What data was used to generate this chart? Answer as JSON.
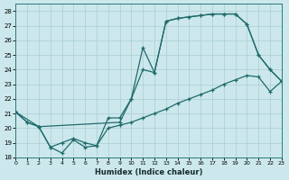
{
  "xlabel": "Humidex (Indice chaleur)",
  "bg_color": "#cce8ec",
  "line_color": "#1f6b6b",
  "grid_color": "#aacdd2",
  "xlim": [
    0,
    23
  ],
  "ylim": [
    18,
    28.5
  ],
  "xtick_vals": [
    0,
    1,
    2,
    3,
    4,
    5,
    6,
    7,
    8,
    9,
    10,
    11,
    12,
    13,
    14,
    15,
    16,
    17,
    18,
    19,
    20,
    21,
    22,
    23
  ],
  "ytick_vals": [
    18,
    19,
    20,
    21,
    22,
    23,
    24,
    25,
    26,
    27,
    28
  ],
  "line1_x": [
    0,
    1,
    2,
    3,
    4,
    5,
    6,
    7,
    8,
    9,
    10,
    11,
    12,
    13,
    14,
    15,
    16,
    17,
    18,
    19,
    20,
    21,
    22,
    23
  ],
  "line1_y": [
    21.1,
    20.4,
    20.1,
    18.7,
    18.3,
    19.2,
    18.7,
    18.8,
    20.7,
    20.7,
    22.0,
    25.5,
    23.8,
    27.3,
    27.5,
    27.6,
    27.7,
    27.8,
    27.8,
    27.8,
    27.1,
    25.0,
    24.0,
    23.2
  ],
  "line2_x": [
    0,
    2,
    9,
    10,
    11,
    12,
    13,
    14,
    15,
    16,
    17,
    18,
    19,
    20,
    21,
    22,
    23
  ],
  "line2_y": [
    21.1,
    20.1,
    20.4,
    22.0,
    24.0,
    23.8,
    27.3,
    27.5,
    27.6,
    27.7,
    27.8,
    27.8,
    27.8,
    27.1,
    25.0,
    24.0,
    23.2
  ],
  "line3_x": [
    0,
    1,
    2,
    3,
    4,
    5,
    6,
    7,
    8,
    9,
    10,
    11,
    12,
    13,
    14,
    15,
    16,
    17,
    18,
    19,
    20,
    21,
    22,
    23
  ],
  "line3_y": [
    21.1,
    20.4,
    20.1,
    18.7,
    19.0,
    19.3,
    19.0,
    18.8,
    20.0,
    20.2,
    20.4,
    20.7,
    21.0,
    21.3,
    21.7,
    22.0,
    22.3,
    22.6,
    23.0,
    23.3,
    23.6,
    23.5,
    22.5,
    23.2
  ]
}
